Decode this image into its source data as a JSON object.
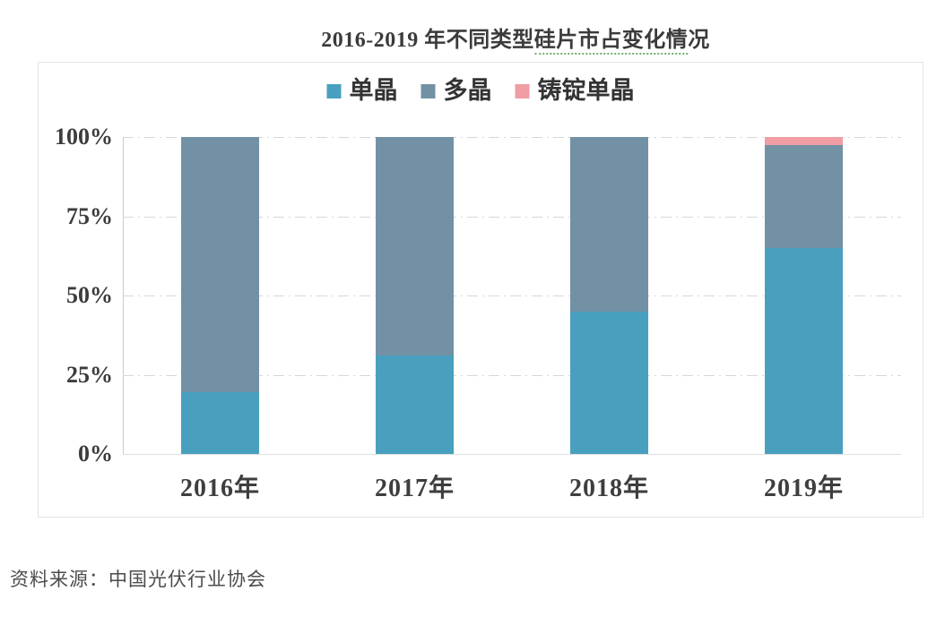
{
  "title": {
    "prefix": "2016-2019 年不同类型",
    "underlined": "硅片市占变化情",
    "suffix": "况",
    "full": "2016-2019 年不同类型硅片市占变化情况"
  },
  "source_note": "资料来源：中国光伏行业协会",
  "colors": {
    "mono": "#48a0be",
    "multi": "#7391a5",
    "cast_mono": "#f09da3",
    "grid": "#d7d7d7",
    "frame": "#e3e3e3",
    "text": "#3c3c3c"
  },
  "chart_data": {
    "type": "bar",
    "stacked": true,
    "title": "2016-2019 年不同类型硅片市占变化情况",
    "categories": [
      "2016年",
      "2017年",
      "2018年",
      "2019年"
    ],
    "series": [
      {
        "name": "单晶",
        "color": "#48a0be",
        "values": [
          19.5,
          31.0,
          45.0,
          65.0
        ]
      },
      {
        "name": "多晶",
        "color": "#7391a5",
        "values": [
          80.5,
          69.0,
          55.0,
          32.5
        ]
      },
      {
        "name": "铸锭单晶",
        "color": "#f09da3",
        "values": [
          0.0,
          0.0,
          0.0,
          2.5
        ]
      }
    ],
    "y_ticks": [
      "0%",
      "25%",
      "50%",
      "75%",
      "100%"
    ],
    "ylim": [
      0,
      100
    ],
    "ylabel": "",
    "xlabel": "",
    "grid": "horizontal dash-dot at 25/50/75/100",
    "legend_position": "top-center",
    "source": "中国光伏行业协会"
  }
}
